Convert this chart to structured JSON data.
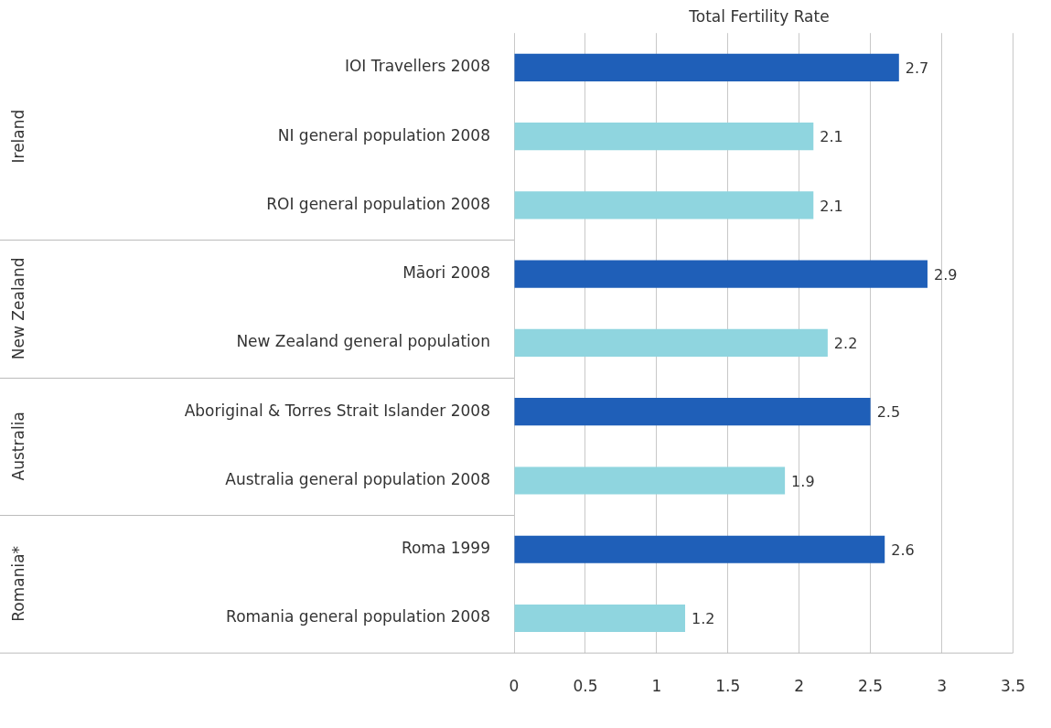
{
  "chart_data": {
    "type": "bar",
    "orientation": "horizontal",
    "xlabel": "Total Fertility Rate",
    "categories": [
      "IOI Travellers 2008",
      "NI general population 2008",
      "ROI general population 2008",
      "Māori 2008",
      "New Zealand general population",
      "Aboriginal & Torres Strait Islander 2008",
      "Australia general population 2008",
      "Roma 1999",
      "Romania general population 2008"
    ],
    "values": [
      2.7,
      2.1,
      2.1,
      2.9,
      2.2,
      2.5,
      1.9,
      2.6,
      1.2
    ],
    "colors": [
      "#1f5fb8",
      "#8fd5df",
      "#8fd5df",
      "#1f5fb8",
      "#8fd5df",
      "#1f5fb8",
      "#8fd5df",
      "#1f5fb8",
      "#8fd5df"
    ],
    "xlim": [
      0,
      3.5
    ],
    "xticks": [
      0,
      0.5,
      1,
      1.5,
      2,
      2.5,
      3,
      3.5
    ],
    "grid": "x",
    "legend": false,
    "data_labels": true,
    "annotations": [
      "Ireland",
      "New Zealand",
      "Australia",
      "Romania*"
    ]
  }
}
